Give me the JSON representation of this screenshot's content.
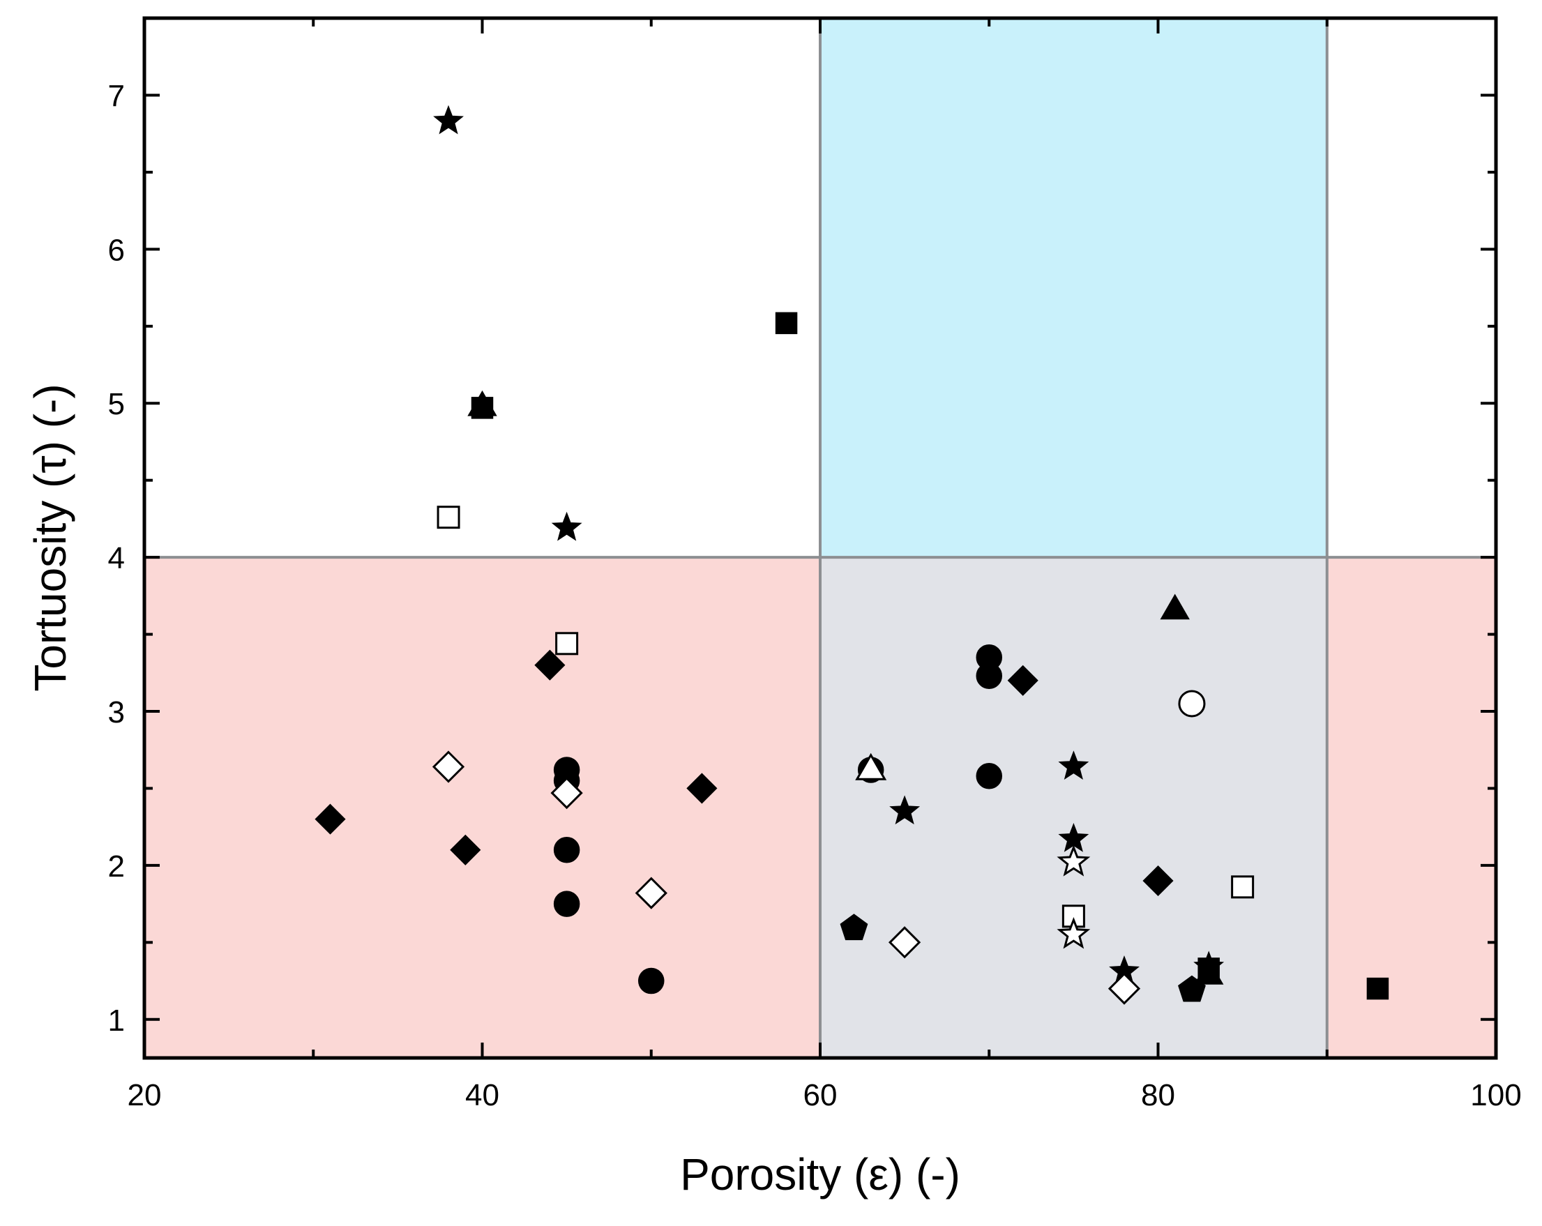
{
  "chart_data": {
    "type": "scatter",
    "title": "",
    "xlabel": "Porosity (ε) (-)",
    "ylabel": "Tortuosity (τ) (-)",
    "xlim": [
      20,
      100
    ],
    "ylim": [
      0.75,
      7.5
    ],
    "xticks": [
      20,
      40,
      60,
      80,
      100
    ],
    "yticks": [
      1,
      2,
      3,
      4,
      5,
      6,
      7
    ],
    "grid": false,
    "regions": [
      {
        "name": "low-tortuosity-band",
        "x": [
          20,
          100
        ],
        "y": [
          0.75,
          4
        ],
        "color": "#fbd8d6"
      },
      {
        "name": "high-porosity-band",
        "x": [
          60,
          90
        ],
        "y": [
          0.75,
          7.5
        ],
        "color": "#c9f1fb"
      },
      {
        "name": "target-region-overlap",
        "x": [
          60,
          90
        ],
        "y": [
          0.75,
          4
        ],
        "color": "#e1e3e8"
      }
    ],
    "series": [
      {
        "name": "filled-star",
        "marker": "star",
        "filled": true,
        "points": [
          [
            38,
            6.84
          ],
          [
            45,
            4.2
          ],
          [
            65,
            2.36
          ],
          [
            75,
            2.65
          ],
          [
            75,
            2.18
          ],
          [
            78,
            1.32
          ],
          [
            83,
            1.35
          ]
        ]
      },
      {
        "name": "filled-square",
        "marker": "square",
        "filled": true,
        "points": [
          [
            58,
            5.52
          ],
          [
            40,
            4.97
          ],
          [
            83,
            1.33
          ],
          [
            93,
            1.2
          ]
        ]
      },
      {
        "name": "filled-triangle",
        "marker": "triangle",
        "filled": true,
        "points": [
          [
            40,
            4.99
          ],
          [
            81,
            3.67
          ],
          [
            83,
            1.3
          ]
        ]
      },
      {
        "name": "open-square",
        "marker": "square",
        "filled": false,
        "points": [
          [
            38,
            4.26
          ],
          [
            45,
            3.44
          ],
          [
            75,
            1.67
          ],
          [
            85,
            1.86
          ]
        ]
      },
      {
        "name": "filled-diamond",
        "marker": "diamond",
        "filled": true,
        "points": [
          [
            44,
            3.3
          ],
          [
            31,
            2.3
          ],
          [
            39,
            2.1
          ],
          [
            53,
            2.5
          ],
          [
            72,
            3.2
          ],
          [
            80,
            1.9
          ]
        ]
      },
      {
        "name": "filled-circle",
        "marker": "circle",
        "filled": true,
        "points": [
          [
            45,
            2.62
          ],
          [
            45,
            2.55
          ],
          [
            45,
            2.1
          ],
          [
            45,
            1.75
          ],
          [
            50,
            1.25
          ],
          [
            70,
            3.35
          ],
          [
            70,
            3.23
          ],
          [
            70,
            2.58
          ],
          [
            63,
            2.62
          ]
        ]
      },
      {
        "name": "open-diamond",
        "marker": "diamond",
        "filled": false,
        "points": [
          [
            38,
            2.64
          ],
          [
            45,
            2.47
          ],
          [
            50,
            1.82
          ],
          [
            65,
            1.5
          ],
          [
            78,
            1.2
          ]
        ]
      },
      {
        "name": "open-triangle",
        "marker": "triangle",
        "filled": false,
        "points": [
          [
            63,
            2.63
          ]
        ]
      },
      {
        "name": "filled-pentagon",
        "marker": "pentagon",
        "filled": true,
        "points": [
          [
            62,
            1.6
          ],
          [
            82,
            1.2
          ]
        ]
      },
      {
        "name": "open-circle",
        "marker": "circle",
        "filled": false,
        "points": [
          [
            82,
            3.05
          ]
        ]
      },
      {
        "name": "open-star",
        "marker": "star",
        "filled": false,
        "points": [
          [
            75,
            2.03
          ],
          [
            75,
            1.56
          ]
        ]
      }
    ]
  }
}
